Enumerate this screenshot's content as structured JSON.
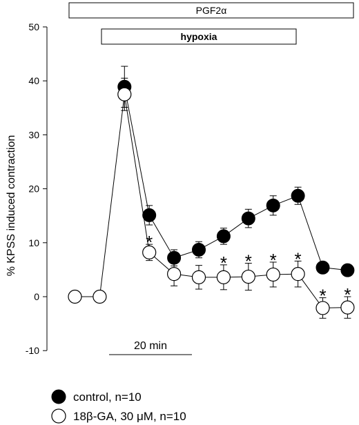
{
  "chart_data": {
    "type": "line",
    "xlabel": "",
    "ylabel": "% KPSS induced contraction",
    "ylim": [
      -10,
      50
    ],
    "yticks": [
      -10,
      0,
      10,
      20,
      30,
      40,
      50
    ],
    "x": [
      1,
      2,
      3,
      4,
      5,
      6,
      7,
      8,
      9,
      10,
      11,
      12,
      13
    ],
    "grid": false,
    "legend_position": "bottom-left",
    "series": [
      {
        "name": "control, n=10",
        "marker": "filled-circle",
        "color": "#000000",
        "x": [
          3,
          4,
          5,
          6,
          7,
          8,
          9,
          10,
          11,
          12
        ],
        "values": [
          38.9,
          15.1,
          7.2,
          8.7,
          11.2,
          14.5,
          16.9,
          18.7,
          5.4,
          4.9
        ],
        "error": [
          3.8,
          1.8,
          1.5,
          1.5,
          1.5,
          1.7,
          1.8,
          1.6,
          0.5,
          0.7
        ]
      },
      {
        "name": "18β-GA, 30 μM, n=10",
        "marker": "open-circle",
        "color": "#000000",
        "x": [
          1,
          2,
          3,
          4,
          5,
          6,
          7,
          8,
          9,
          10,
          11,
          12
        ],
        "values": [
          0,
          0,
          37.5,
          8.2,
          4.2,
          3.6,
          3.6,
          3.7,
          4.1,
          4.2,
          -2.1,
          -2.0
        ],
        "error": [
          0,
          0,
          3.0,
          1.5,
          2.2,
          2.2,
          2.3,
          2.5,
          2.3,
          2.4,
          1.9,
          2.0
        ]
      }
    ],
    "significance": {
      "symbol": "*",
      "x": [
        4,
        7,
        8,
        9,
        10,
        11,
        12
      ]
    },
    "bars": [
      {
        "label": "PGF2α",
        "from_x": 1,
        "to_x": 13
      },
      {
        "label": "hypoxia",
        "from_x": 3,
        "to_x": 10
      }
    ],
    "scalebar": {
      "label": "20 min",
      "from_x": 3,
      "to_x": 5.7
    }
  }
}
